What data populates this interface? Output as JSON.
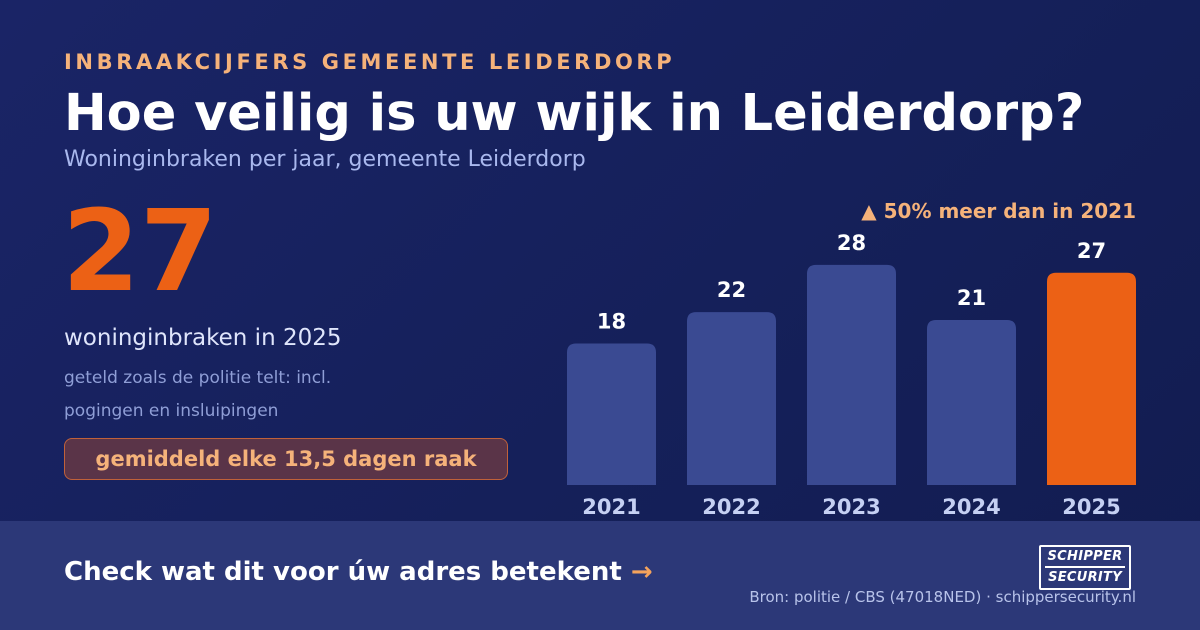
{
  "header": {
    "eyebrow": "INBRAAKCIJFERS GEMEENTE LEIDERDORP",
    "title": "Hoe veilig is uw wijk in Leiderdorp?",
    "subtitle": "Woninginbraken per jaar, gemeente Leiderdorp"
  },
  "highlight": {
    "number": "27",
    "caption": "woninginbraken in 2025",
    "note": "geteld zoals de politie telt: incl. pogingen en insluipingen",
    "pill": "gemiddeld elke 13,5 dagen raak"
  },
  "chart_data": {
    "type": "bar",
    "categories": [
      "2021",
      "2022",
      "2023",
      "2024",
      "2025"
    ],
    "values": [
      18,
      22,
      28,
      21,
      27
    ],
    "annotation": "▲ 50% meer dan in 2021",
    "highlight_index": 4,
    "colors": {
      "bar": "#3a4a92",
      "highlight": "#ec6115"
    },
    "grid": false,
    "legend": "none"
  },
  "footer": {
    "cta": "Check wat dit voor úw adres betekent",
    "cta_arrow": "→",
    "logo_line1": "SCHIPPER",
    "logo_line2": "SECURITY",
    "source": "Bron: politie / CBS (47018NED) · schippersecurity.nl"
  }
}
